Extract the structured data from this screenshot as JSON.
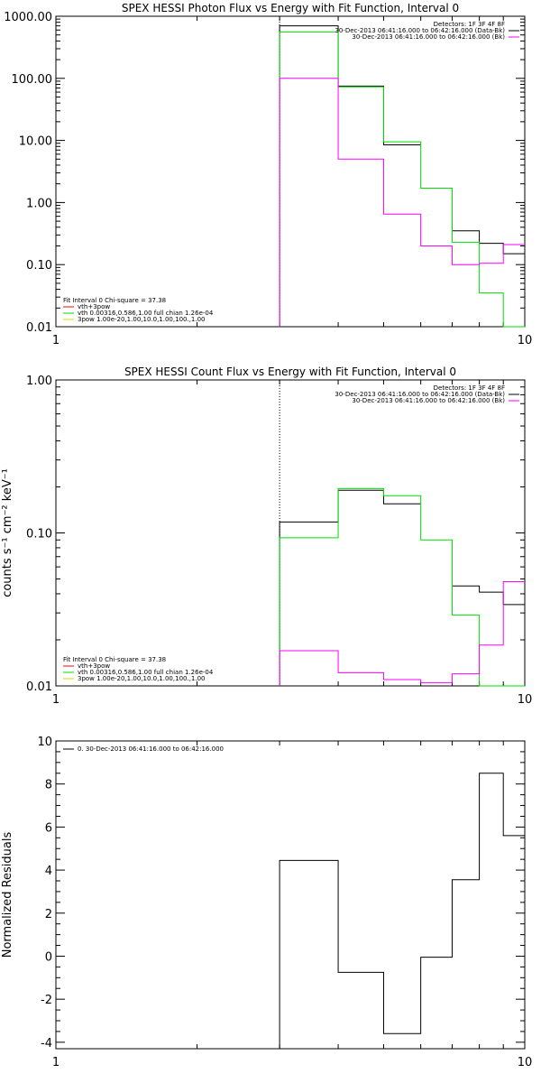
{
  "chart_data": [
    {
      "type": "line",
      "title": "SPEX HESSI Photon Flux vs Energy with Fit Function, Interval 0",
      "xscale": "log",
      "yscale": "log",
      "xlim": [
        1,
        10
      ],
      "ylim": [
        0.01,
        1000
      ],
      "xticks": [
        1,
        10
      ],
      "xtick_labels": [
        "1",
        "10"
      ],
      "yticks": [
        0.01,
        0.1,
        1,
        10,
        100,
        1000
      ],
      "ytick_labels": [
        "0.01",
        "0.10",
        "1.00",
        "10.00",
        "100.00",
        "1000.00"
      ],
      "ylabel": "",
      "legend_top": [
        "Detectors: 1F 3F 4F 8F",
        "30-Dec-2013 06:41:16.000 to 06:42:16.000 (Data-Bk)",
        "30-Dec-2013 06:41:16.000 to 06:42:16.000 (Bk)"
      ],
      "legend_top_colors": [
        "",
        "#000000",
        "#ff00ff"
      ],
      "legend_bottom": [
        "Fit Interval 0   Chi-square = 37.38",
        "vth+3pow",
        "vth 0.00316,0.586,1.00  full chian 1.26e-04",
        "3pow 1.00e-20,1.00,10.0,1.00,100.,1.00"
      ],
      "legend_bottom_colors": [
        "",
        "#ff0000",
        "#00dd00",
        "#dddd00"
      ],
      "edges": [
        3,
        4,
        5,
        6,
        7,
        8,
        9,
        10
      ],
      "series": [
        {
          "name": "30-Dec-2013 06:41:16.000 to 06:42:16.000 (Data-Bk)",
          "color": "#000000",
          "values": [
            700,
            75,
            8.5,
            null,
            0.35,
            0.22,
            0.15
          ]
        },
        {
          "name": "vth+3pow",
          "color": "#00dd00",
          "values": [
            560,
            73,
            9.5,
            1.7,
            0.23,
            0.035,
            0.0
          ]
        },
        {
          "name": "30-Dec-2013 06:41:16.000 to 06:42:16.000 (Bk)",
          "color": "#ff00ff",
          "values": [
            100,
            5,
            0.65,
            0.2,
            0.1,
            0.105,
            0.21
          ]
        }
      ],
      "vline": 3
    },
    {
      "type": "line",
      "title": "SPEX HESSI Count Flux vs Energy with Fit Function, Interval 0",
      "xscale": "log",
      "yscale": "log",
      "xlim": [
        1,
        10
      ],
      "ylim": [
        0.01,
        1
      ],
      "xticks": [
        1,
        10
      ],
      "xtick_labels": [
        "1",
        "10"
      ],
      "yticks": [
        0.01,
        0.1,
        1
      ],
      "ytick_labels": [
        "0.01",
        "0.10",
        "1.00"
      ],
      "ylabel": "counts s⁻¹ cm⁻² keV⁻¹",
      "legend_top": [
        "Detectors: 1F 3F 4F 8F",
        "30-Dec-2013 06:41:16.000 to 06:42:16.000 (Data-Bk)",
        "30-Dec-2013 06:41:16.000 to 06:42:16.000 (Bk)"
      ],
      "legend_top_colors": [
        "",
        "#000000",
        "#ff00ff"
      ],
      "legend_bottom": [
        "Fit Interval 0   Chi-square = 37.38",
        "vth+3pow",
        "vth 0.00316,0.586,1.00  full chian 1.26e-04",
        "3pow 1.00e-20,1.00,10.0,1.00,100.,1.00"
      ],
      "legend_bottom_colors": [
        "",
        "#ff0000",
        "#00dd00",
        "#dddd00"
      ],
      "edges": [
        3,
        4,
        5,
        6,
        7,
        8,
        9,
        10
      ],
      "series": [
        {
          "name": "30-Dec-2013 06:41:16.000 to 06:42:16.000 (Data-Bk)",
          "color": "#000000",
          "values": [
            0.118,
            0.19,
            0.155,
            null,
            0.045,
            0.041,
            0.034
          ]
        },
        {
          "name": "vth+3pow",
          "color": "#00dd00",
          "values": [
            0.093,
            0.195,
            0.175,
            0.09,
            0.029,
            0.0,
            0.0
          ]
        },
        {
          "name": "30-Dec-2013 06:41:16.000 to 06:42:16.000 (Bk)",
          "color": "#ff00ff",
          "values": [
            0.017,
            0.0122,
            0.011,
            0.0105,
            0.012,
            0.0185,
            0.048
          ]
        }
      ],
      "vline": 3
    },
    {
      "type": "line",
      "title": "",
      "xscale": "log",
      "yscale": "linear",
      "xlim": [
        1,
        10
      ],
      "ylim": [
        -4.3,
        10
      ],
      "xticks": [
        1,
        10
      ],
      "xtick_labels": [
        "1",
        "10"
      ],
      "yticks": [
        -4,
        -2,
        0,
        2,
        4,
        6,
        8,
        10
      ],
      "ytick_labels": [
        "-4",
        "-2",
        "0",
        "2",
        "4",
        "6",
        "8",
        "10"
      ],
      "ylabel": "Normalized Residuals",
      "legend_top": [
        "0. 30-Dec-2013 06:41:16.000 to 06:42:16.000"
      ],
      "legend_top_colors": [
        "#000000"
      ],
      "edges": [
        3,
        4,
        5,
        6,
        7,
        8,
        9,
        10
      ],
      "series": [
        {
          "name": "0. 30-Dec-2013 06:41:16.000 to 06:42:16.000",
          "color": "#000000",
          "values": [
            4.45,
            -0.75,
            -3.6,
            -0.05,
            3.55,
            8.5,
            5.6
          ]
        }
      ]
    }
  ]
}
